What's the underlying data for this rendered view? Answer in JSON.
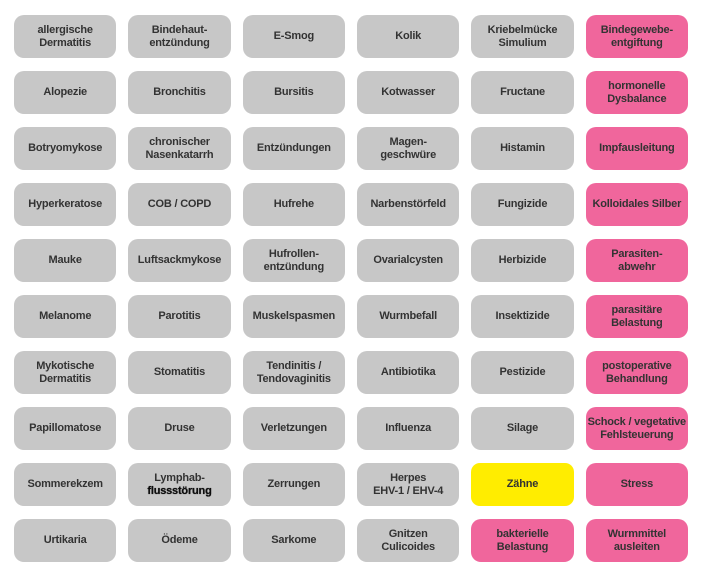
{
  "page": {
    "background": "#ffffff",
    "description_grid": "6x10 grid of topic buttons"
  },
  "colors": {
    "gray": "#c7c7c7",
    "pink": "#f0669c",
    "yellow": "#ffed00",
    "text": "#333333"
  },
  "grid": {
    "columns": 6,
    "rows": 10
  },
  "tiles": [
    {
      "lines": [
        "allergische",
        "Dermatitis"
      ],
      "variant": "gray"
    },
    {
      "lines": [
        "Bindehaut-",
        "entzündung"
      ],
      "variant": "gray"
    },
    {
      "lines": [
        "E-Smog"
      ],
      "variant": "gray"
    },
    {
      "lines": [
        "Kolik"
      ],
      "variant": "gray"
    },
    {
      "lines": [
        "Kriebelmücke",
        "Simulium"
      ],
      "variant": "gray"
    },
    {
      "lines": [
        "Bindegewebe-",
        "entgiftung"
      ],
      "variant": "pink"
    },
    {
      "lines": [
        "Alopezie"
      ],
      "variant": "gray"
    },
    {
      "lines": [
        "Bronchitis"
      ],
      "variant": "gray"
    },
    {
      "lines": [
        "Bursitis"
      ],
      "variant": "gray"
    },
    {
      "lines": [
        "Kotwasser"
      ],
      "variant": "gray"
    },
    {
      "lines": [
        "Fructane"
      ],
      "variant": "gray"
    },
    {
      "lines": [
        "hormonelle",
        "Dysbalance"
      ],
      "variant": "pink"
    },
    {
      "lines": [
        "Botryomykose"
      ],
      "variant": "gray"
    },
    {
      "lines": [
        "chronischer",
        "Nasenkatarrh"
      ],
      "variant": "gray"
    },
    {
      "lines": [
        "Entzündungen"
      ],
      "variant": "gray"
    },
    {
      "lines": [
        "Magen-",
        "geschwüre"
      ],
      "variant": "gray"
    },
    {
      "lines": [
        "Histamin"
      ],
      "variant": "gray"
    },
    {
      "lines": [
        "Impfausleitung"
      ],
      "variant": "pink"
    },
    {
      "lines": [
        "Hyperkeratose"
      ],
      "variant": "gray"
    },
    {
      "lines": [
        "COB / COPD"
      ],
      "variant": "gray"
    },
    {
      "lines": [
        "Hufrehe"
      ],
      "variant": "gray"
    },
    {
      "lines": [
        "Narbenstörfeld"
      ],
      "variant": "gray"
    },
    {
      "lines": [
        "Fungizide"
      ],
      "variant": "gray"
    },
    {
      "lines": [
        "Kolloidales Silber"
      ],
      "variant": "pink"
    },
    {
      "lines": [
        "Mauke"
      ],
      "variant": "gray"
    },
    {
      "lines": [
        "Luftsackmykose"
      ],
      "variant": "gray"
    },
    {
      "lines": [
        "Hufrollen-",
        "entzündung"
      ],
      "variant": "gray"
    },
    {
      "lines": [
        "Ovarialcysten"
      ],
      "variant": "gray"
    },
    {
      "lines": [
        "Herbizide"
      ],
      "variant": "gray"
    },
    {
      "lines": [
        "Parasiten-",
        "abwehr"
      ],
      "variant": "pink"
    },
    {
      "lines": [
        "Melanome"
      ],
      "variant": "gray"
    },
    {
      "lines": [
        "Parotitis"
      ],
      "variant": "gray"
    },
    {
      "lines": [
        "Muskelspasmen"
      ],
      "variant": "gray"
    },
    {
      "lines": [
        "Wurmbefall"
      ],
      "variant": "gray"
    },
    {
      "lines": [
        "Insektizide"
      ],
      "variant": "gray"
    },
    {
      "lines": [
        "parasitäre",
        "Belastung"
      ],
      "variant": "pink"
    },
    {
      "lines": [
        "Mykotische",
        "Dermatitis"
      ],
      "variant": "gray"
    },
    {
      "lines": [
        "Stomatitis"
      ],
      "variant": "gray"
    },
    {
      "lines": [
        "Tendinitis /",
        "Tendovaginitis"
      ],
      "variant": "gray"
    },
    {
      "lines": [
        "Antibiotika"
      ],
      "variant": "gray"
    },
    {
      "lines": [
        "Pestizide"
      ],
      "variant": "gray"
    },
    {
      "lines": [
        "postoperative",
        "Behandlung"
      ],
      "variant": "pink"
    },
    {
      "lines": [
        "Papillomatose"
      ],
      "variant": "gray"
    },
    {
      "lines": [
        "Druse"
      ],
      "variant": "gray"
    },
    {
      "lines": [
        "Verletzungen"
      ],
      "variant": "gray"
    },
    {
      "lines": [
        "Influenza"
      ],
      "variant": "gray"
    },
    {
      "lines": [
        "Silage"
      ],
      "variant": "gray"
    },
    {
      "lines": [
        "Schock / vegetative",
        "Fehlsteuerung"
      ],
      "variant": "pink"
    },
    {
      "lines": [
        "Sommerekzem"
      ],
      "variant": "gray"
    },
    {
      "lines": [
        "Lymphab-",
        "flussstörung"
      ],
      "variant": "gray",
      "heavy_lines": [
        1
      ]
    },
    {
      "lines": [
        "Zerrungen"
      ],
      "variant": "gray"
    },
    {
      "lines": [
        "Herpes",
        "EHV-1 / EHV-4"
      ],
      "variant": "gray"
    },
    {
      "lines": [
        "Zähne"
      ],
      "variant": "yellow"
    },
    {
      "lines": [
        "Stress"
      ],
      "variant": "pink"
    },
    {
      "lines": [
        "Urtikaria"
      ],
      "variant": "gray"
    },
    {
      "lines": [
        "Ödeme"
      ],
      "variant": "gray"
    },
    {
      "lines": [
        "Sarkome"
      ],
      "variant": "gray"
    },
    {
      "lines": [
        "Gnitzen",
        "Culicoides"
      ],
      "variant": "gray"
    },
    {
      "lines": [
        "bakterielle",
        "Belastung"
      ],
      "variant": "pink"
    },
    {
      "lines": [
        "Wurmmittel",
        "ausleiten"
      ],
      "variant": "pink"
    }
  ]
}
